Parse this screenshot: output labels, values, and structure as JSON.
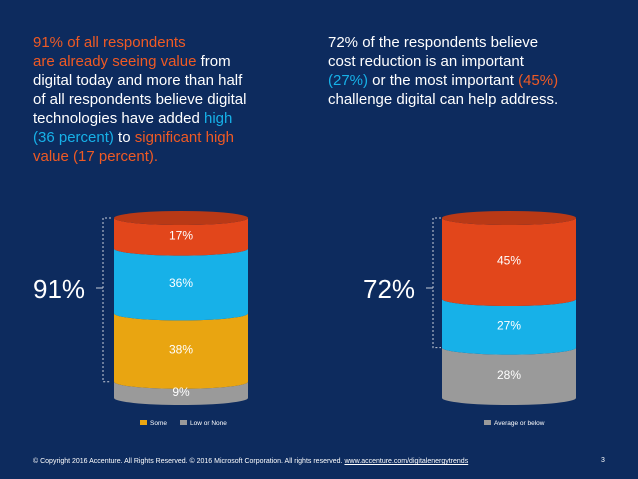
{
  "left_text": {
    "line1": "91% of all respondents",
    "line2": "are already seeing value",
    "line2b": " from",
    "line3": "digital today and more than half",
    "line4": "of all respondents believe digital",
    "line5a": "technologies have added ",
    "line5b": "high",
    "line6a": "(36 percent)",
    "line6b": " to ",
    "line6c": "significant high",
    "line7": "value (17 percent)."
  },
  "right_text": {
    "line1": "72% of the respondents believe",
    "line2": "cost reduction is an important",
    "line3a": "(27%)",
    "line3b": " or the most important ",
    "line3c": "(45%)",
    "line4": "challenge digital can help address."
  },
  "colors": {
    "background": "#0d2b5e",
    "orange": "#e2461b",
    "blue": "#17b1e8",
    "gold": "#e9a511",
    "gray": "#9a9a9a"
  },
  "chart_data": [
    {
      "type": "bar",
      "stacked": true,
      "callout": "91%",
      "segments": [
        {
          "name": "Low or None",
          "value": 9,
          "label": "9%",
          "color": "#9a9a9a"
        },
        {
          "name": "Some",
          "value": 38,
          "label": "38%",
          "color": "#e9a511"
        },
        {
          "name": "",
          "value": 36,
          "label": "36%",
          "color": "#17b1e8"
        },
        {
          "name": "",
          "value": 17,
          "label": "17%",
          "color": "#e2461b"
        }
      ],
      "legend": [
        "Some",
        "Low or None"
      ]
    },
    {
      "type": "bar",
      "stacked": true,
      "callout": "72%",
      "segments": [
        {
          "name": "Average or below",
          "value": 28,
          "label": "28%",
          "color": "#9a9a9a"
        },
        {
          "name": "",
          "value": 27,
          "label": "27%",
          "color": "#17b1e8"
        },
        {
          "name": "",
          "value": 45,
          "label": "45%",
          "color": "#e2461b"
        }
      ],
      "legend": [
        "Average or below"
      ]
    }
  ],
  "footer": {
    "text": "© Copyright 2016 Accenture. All Rights Reserved. © 2016 Microsoft Corporation. All rights reserved. ",
    "link": "www.accenture.com/digitalenergytrends",
    "page": "3"
  }
}
